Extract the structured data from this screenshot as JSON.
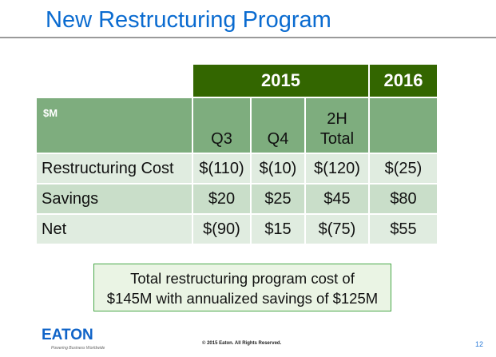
{
  "title": "New Restructuring Program",
  "table": {
    "years": [
      "2015",
      "2016"
    ],
    "unit": "$M",
    "columns": [
      "Q3",
      "Q4",
      "2H",
      "Total",
      ""
    ],
    "rows": [
      {
        "label": "Restructuring Cost",
        "values": [
          "$(110)",
          "$(10)",
          "$(120)",
          "$(25)"
        ]
      },
      {
        "label": "Savings",
        "values": [
          "$20",
          "$25",
          "$45",
          "$80"
        ]
      },
      {
        "label": "Net",
        "values": [
          "$(90)",
          "$15",
          "$(75)",
          "$55"
        ]
      }
    ]
  },
  "callout": {
    "line1": "Total restructuring program cost of",
    "line2": "$145M with annualized savings of $125M"
  },
  "footer": {
    "logo": "EATON",
    "tagline": "Powering Business Worldwide",
    "copyright": "© 2015 Eaton. All Rights Reserved.",
    "page": "12"
  },
  "colors": {
    "title": "#0a6bd0",
    "year_header": "#336600",
    "col_header": "#7ead7e",
    "row_light": "#e0ece0",
    "row_dark": "#c9dec9"
  }
}
